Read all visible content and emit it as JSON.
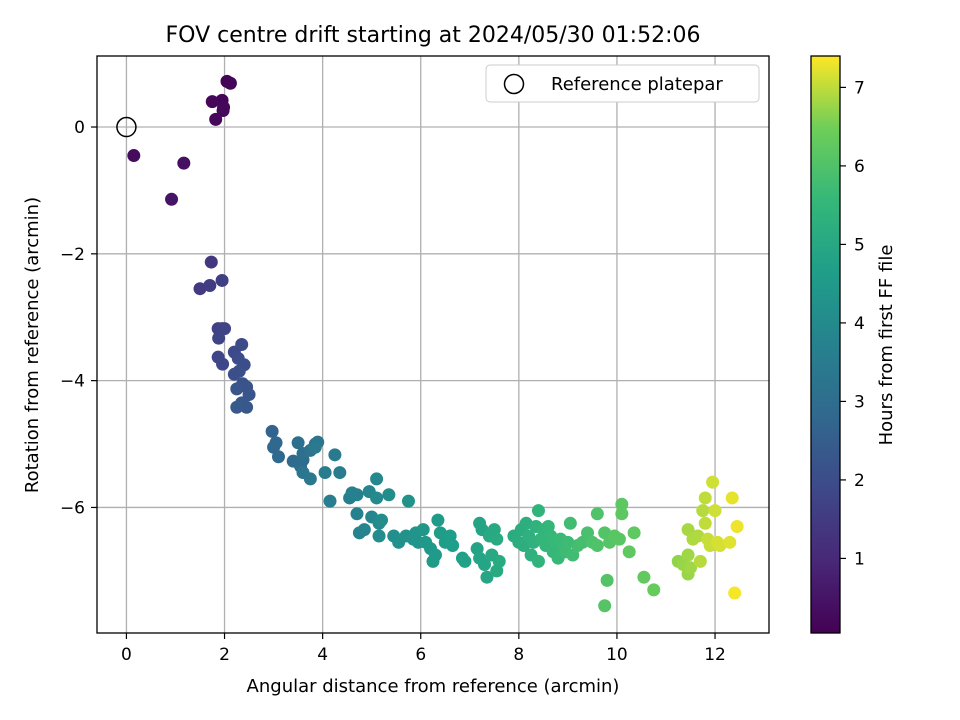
{
  "chart_data": {
    "type": "scatter",
    "title": "FOV centre drift starting at 2024/05/30 01:52:06",
    "xlabel": "Angular distance from reference (arcmin)",
    "ylabel": "Rotation from reference (arcmin)",
    "xlim": [
      -0.6,
      13.1
    ],
    "ylim": [
      -7.98,
      1.12
    ],
    "xticks": [
      0,
      2,
      4,
      6,
      8,
      10,
      12
    ],
    "xtick_labels": [
      "0",
      "2",
      "4",
      "6",
      "8",
      "10",
      "12"
    ],
    "yticks": [
      0,
      -2,
      -4,
      -6
    ],
    "ytick_labels": [
      "0",
      "−2",
      "−4",
      "−6"
    ],
    "grid": true,
    "legend": {
      "position": "top-right",
      "entries": [
        "Reference platepar"
      ]
    },
    "reference_point": {
      "x": 0,
      "y": 0,
      "label": "Reference platepar"
    },
    "colorbar": {
      "label": "Hours from first FF file",
      "range": [
        0.05,
        7.4
      ],
      "ticks": [
        1,
        2,
        3,
        4,
        5,
        6,
        7
      ],
      "tick_labels": [
        "1",
        "2",
        "3",
        "4",
        "5",
        "6",
        "7"
      ],
      "colormap": "viridis"
    },
    "points": [
      [
        2.05,
        0.72,
        0.1
      ],
      [
        2.12,
        0.69,
        0.12
      ],
      [
        1.95,
        0.42,
        0.15
      ],
      [
        1.75,
        0.4,
        0.18
      ],
      [
        1.97,
        0.26,
        0.2
      ],
      [
        1.82,
        0.12,
        0.22
      ],
      [
        1.98,
        0.31,
        0.25
      ],
      [
        0.15,
        -0.45,
        0.3
      ],
      [
        1.17,
        -0.57,
        0.4
      ],
      [
        0.92,
        -1.14,
        0.5
      ],
      [
        1.73,
        -2.13,
        1.4
      ],
      [
        1.5,
        -2.55,
        1.5
      ],
      [
        1.7,
        -2.5,
        1.55
      ],
      [
        1.95,
        -2.42,
        1.6
      ],
      [
        1.87,
        -3.18,
        1.65
      ],
      [
        1.95,
        -3.18,
        1.7
      ],
      [
        2.0,
        -3.18,
        1.75
      ],
      [
        1.88,
        -3.33,
        1.75
      ],
      [
        1.87,
        -3.63,
        1.8
      ],
      [
        1.96,
        -3.74,
        1.85
      ],
      [
        2.2,
        -3.55,
        1.9
      ],
      [
        2.35,
        -3.43,
        1.95
      ],
      [
        2.28,
        -3.65,
        2.0
      ],
      [
        2.4,
        -3.75,
        2.05
      ],
      [
        2.2,
        -3.9,
        2.1
      ],
      [
        2.3,
        -3.85,
        2.1
      ],
      [
        2.37,
        -4.05,
        2.15
      ],
      [
        2.45,
        -4.1,
        2.2
      ],
      [
        2.5,
        -4.22,
        2.25
      ],
      [
        2.25,
        -4.13,
        2.25
      ],
      [
        2.35,
        -4.35,
        2.3
      ],
      [
        2.45,
        -4.42,
        2.3
      ],
      [
        2.25,
        -4.42,
        2.35
      ],
      [
        2.97,
        -4.8,
        2.7
      ],
      [
        3.05,
        -4.98,
        2.8
      ],
      [
        3.0,
        -5.05,
        2.8
      ],
      [
        3.1,
        -5.2,
        2.85
      ],
      [
        3.4,
        -5.27,
        2.9
      ],
      [
        3.55,
        -5.35,
        2.95
      ],
      [
        3.6,
        -5.25,
        3.0
      ],
      [
        3.6,
        -5.15,
        3.05
      ],
      [
        3.5,
        -4.98,
        3.1
      ],
      [
        3.75,
        -5.1,
        3.15
      ],
      [
        3.85,
        -5.0,
        3.2
      ],
      [
        3.9,
        -4.97,
        3.25
      ],
      [
        3.6,
        -5.45,
        3.3
      ],
      [
        3.75,
        -5.55,
        3.35
      ],
      [
        3.85,
        -5.05,
        3.4
      ],
      [
        4.25,
        -5.17,
        3.45
      ],
      [
        4.05,
        -5.45,
        3.5
      ],
      [
        4.35,
        -5.45,
        3.5
      ],
      [
        4.15,
        -5.9,
        3.55
      ],
      [
        4.55,
        -5.85,
        3.6
      ],
      [
        4.6,
        -5.77,
        3.65
      ],
      [
        4.7,
        -5.8,
        3.7
      ],
      [
        4.7,
        -6.1,
        3.7
      ],
      [
        4.75,
        -6.4,
        3.75
      ],
      [
        4.85,
        -6.35,
        3.8
      ],
      [
        4.95,
        -5.75,
        3.85
      ],
      [
        5.0,
        -6.15,
        3.9
      ],
      [
        5.1,
        -5.55,
        3.95
      ],
      [
        5.1,
        -5.85,
        4.0
      ],
      [
        5.15,
        -6.25,
        4.0
      ],
      [
        5.15,
        -6.45,
        4.05
      ],
      [
        5.35,
        -5.8,
        4.1
      ],
      [
        5.2,
        -6.2,
        4.1
      ],
      [
        5.45,
        -6.45,
        4.15
      ],
      [
        5.55,
        -6.55,
        4.2
      ],
      [
        5.7,
        -6.45,
        4.25
      ],
      [
        5.75,
        -5.9,
        4.25
      ],
      [
        5.85,
        -6.5,
        4.3
      ],
      [
        5.95,
        -6.55,
        4.35
      ],
      [
        5.9,
        -6.4,
        4.35
      ],
      [
        6.05,
        -6.35,
        4.4
      ],
      [
        6.1,
        -6.55,
        4.45
      ],
      [
        6.2,
        -6.65,
        4.45
      ],
      [
        6.3,
        -6.75,
        4.5
      ],
      [
        6.25,
        -6.85,
        4.55
      ],
      [
        6.35,
        -6.2,
        4.55
      ],
      [
        6.4,
        -6.4,
        4.6
      ],
      [
        6.5,
        -6.55,
        4.6
      ],
      [
        6.6,
        -6.45,
        4.65
      ],
      [
        6.65,
        -6.6,
        4.65
      ],
      [
        6.85,
        -6.8,
        4.7
      ],
      [
        6.9,
        -6.85,
        4.75
      ],
      [
        7.15,
        -6.65,
        4.8
      ],
      [
        7.2,
        -6.25,
        4.85
      ],
      [
        7.25,
        -6.35,
        4.85
      ],
      [
        7.2,
        -6.8,
        4.9
      ],
      [
        7.3,
        -6.9,
        4.9
      ],
      [
        7.35,
        -7.1,
        4.95
      ],
      [
        7.4,
        -6.45,
        5.0
      ],
      [
        7.45,
        -6.75,
        5.0
      ],
      [
        7.5,
        -6.35,
        5.05
      ],
      [
        7.55,
        -7.0,
        5.05
      ],
      [
        7.6,
        -6.85,
        5.1
      ],
      [
        7.55,
        -6.5,
        5.1
      ],
      [
        7.9,
        -6.45,
        5.15
      ],
      [
        8.0,
        -6.55,
        5.2
      ],
      [
        8.05,
        -6.35,
        5.2
      ],
      [
        8.1,
        -6.6,
        5.25
      ],
      [
        8.15,
        -6.25,
        5.25
      ],
      [
        8.2,
        -6.45,
        5.3
      ],
      [
        8.25,
        -6.75,
        5.3
      ],
      [
        8.3,
        -6.55,
        5.35
      ],
      [
        8.35,
        -6.3,
        5.35
      ],
      [
        8.4,
        -6.05,
        5.4
      ],
      [
        8.4,
        -6.85,
        5.4
      ],
      [
        8.45,
        -6.5,
        5.45
      ],
      [
        8.5,
        -6.35,
        5.45
      ],
      [
        8.55,
        -6.6,
        5.5
      ],
      [
        8.6,
        -6.3,
        5.5
      ],
      [
        8.65,
        -6.45,
        5.55
      ],
      [
        8.7,
        -6.7,
        5.55
      ],
      [
        8.75,
        -6.55,
        5.6
      ],
      [
        8.8,
        -6.8,
        5.6
      ],
      [
        8.85,
        -6.5,
        5.65
      ],
      [
        8.9,
        -6.6,
        5.65
      ],
      [
        8.95,
        -6.7,
        5.7
      ],
      [
        9.0,
        -6.55,
        5.7
      ],
      [
        9.05,
        -6.25,
        5.75
      ],
      [
        9.1,
        -6.75,
        5.75
      ],
      [
        9.2,
        -6.6,
        5.8
      ],
      [
        9.3,
        -6.55,
        5.85
      ],
      [
        9.4,
        -6.4,
        5.9
      ],
      [
        9.5,
        -6.55,
        5.95
      ],
      [
        9.6,
        -6.1,
        6.0
      ],
      [
        9.6,
        -6.6,
        6.0
      ],
      [
        9.75,
        -6.4,
        6.05
      ],
      [
        9.8,
        -7.15,
        6.05
      ],
      [
        9.75,
        -7.55,
        6.1
      ],
      [
        9.85,
        -6.55,
        6.1
      ],
      [
        9.95,
        -6.45,
        6.15
      ],
      [
        10.05,
        -6.5,
        6.15
      ],
      [
        10.1,
        -5.95,
        6.2
      ],
      [
        10.1,
        -6.1,
        6.2
      ],
      [
        10.25,
        -6.7,
        6.25
      ],
      [
        10.35,
        -6.4,
        6.25
      ],
      [
        10.55,
        -7.1,
        6.3
      ],
      [
        10.75,
        -7.3,
        6.35
      ],
      [
        11.25,
        -6.85,
        6.7
      ],
      [
        11.35,
        -6.9,
        6.75
      ],
      [
        11.45,
        -7.05,
        6.75
      ],
      [
        11.45,
        -6.75,
        6.8
      ],
      [
        11.5,
        -6.95,
        6.8
      ],
      [
        11.45,
        -6.35,
        6.85
      ],
      [
        11.55,
        -6.5,
        6.9
      ],
      [
        11.65,
        -6.45,
        6.9
      ],
      [
        11.7,
        -6.85,
        6.95
      ],
      [
        11.75,
        -6.05,
        6.95
      ],
      [
        11.8,
        -6.25,
        7.0
      ],
      [
        11.8,
        -5.85,
        7.0
      ],
      [
        11.85,
        -6.5,
        7.05
      ],
      [
        11.9,
        -6.6,
        7.05
      ],
      [
        11.95,
        -5.6,
        7.1
      ],
      [
        12.0,
        -6.05,
        7.1
      ],
      [
        12.05,
        -6.55,
        7.15
      ],
      [
        12.1,
        -6.6,
        7.15
      ],
      [
        12.3,
        -6.55,
        7.2
      ],
      [
        12.35,
        -5.85,
        7.25
      ],
      [
        12.45,
        -6.3,
        7.3
      ],
      [
        12.4,
        -7.35,
        7.35
      ]
    ]
  }
}
